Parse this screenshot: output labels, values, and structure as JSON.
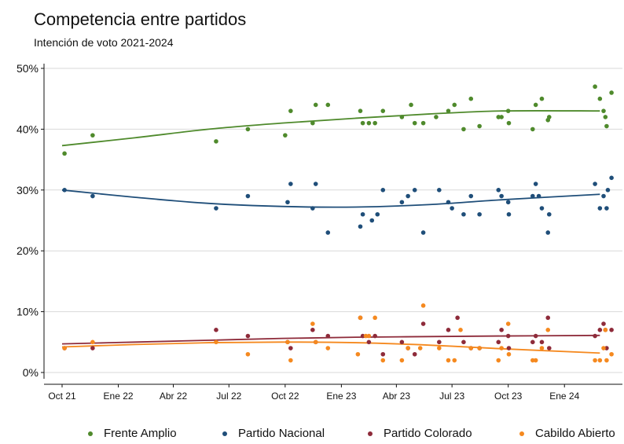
{
  "title": "Competencia entre partidos",
  "subtitle": "Intención de voto 2021-2024",
  "chart_data": {
    "type": "scatter",
    "title": "Competencia entre partidos",
    "subtitle": "Intención de voto 2021-2024",
    "xlabel": "",
    "ylabel": "",
    "x_range": [
      "2021-10-01",
      "2024-04-01"
    ],
    "x_ticks": [
      {
        "date": "2021-10-01",
        "label": "Oct 21"
      },
      {
        "date": "2022-01-01",
        "label": "Ene 22"
      },
      {
        "date": "2022-04-01",
        "label": "Abr 22"
      },
      {
        "date": "2022-07-01",
        "label": "Jul 22"
      },
      {
        "date": "2022-10-01",
        "label": "Oct 22"
      },
      {
        "date": "2023-01-01",
        "label": "Ene 23"
      },
      {
        "date": "2023-04-01",
        "label": "Abr 23"
      },
      {
        "date": "2023-07-01",
        "label": "Jul 23"
      },
      {
        "date": "2023-10-01",
        "label": "Oct 23"
      },
      {
        "date": "2024-01-01",
        "label": "Ene 24"
      }
    ],
    "ylim": [
      0,
      50
    ],
    "y_ticks": [
      {
        "value": 0,
        "label": "0%"
      },
      {
        "value": 10,
        "label": "10%"
      },
      {
        "value": 20,
        "label": "20%"
      },
      {
        "value": 30,
        "label": "30%"
      },
      {
        "value": 40,
        "label": "40%"
      },
      {
        "value": 50,
        "label": "50%"
      }
    ],
    "grid": "horizontal",
    "legend_position": "bottom",
    "series": [
      {
        "name": "Frente Amplio",
        "color": "#4f8a2c",
        "points": [
          [
            "2021-10-05",
            36
          ],
          [
            "2021-11-20",
            39
          ],
          [
            "2022-06-10",
            38
          ],
          [
            "2022-08-01",
            40
          ],
          [
            "2022-10-01",
            39
          ],
          [
            "2022-10-10",
            43
          ],
          [
            "2022-11-15",
            41
          ],
          [
            "2022-11-20",
            44
          ],
          [
            "2022-12-10",
            44
          ],
          [
            "2023-02-01",
            43
          ],
          [
            "2023-02-05",
            41
          ],
          [
            "2023-02-15",
            41
          ],
          [
            "2023-02-25",
            41
          ],
          [
            "2023-03-10",
            43
          ],
          [
            "2023-04-10",
            42
          ],
          [
            "2023-04-25",
            44
          ],
          [
            "2023-05-01",
            41
          ],
          [
            "2023-05-15",
            41
          ],
          [
            "2023-06-05",
            42
          ],
          [
            "2023-06-25",
            43
          ],
          [
            "2023-07-05",
            44
          ],
          [
            "2023-07-20",
            40
          ],
          [
            "2023-08-01",
            45
          ],
          [
            "2023-08-15",
            40.5
          ],
          [
            "2023-09-15",
            42
          ],
          [
            "2023-09-20",
            42
          ],
          [
            "2023-10-01",
            43
          ],
          [
            "2023-10-02",
            41
          ],
          [
            "2023-11-10",
            40
          ],
          [
            "2023-11-15",
            44
          ],
          [
            "2023-11-25",
            45
          ],
          [
            "2023-12-05",
            41.5
          ],
          [
            "2023-12-07",
            42
          ],
          [
            "2024-02-20",
            47
          ],
          [
            "2024-02-28",
            45
          ],
          [
            "2024-03-05",
            43
          ],
          [
            "2024-03-08",
            42
          ],
          [
            "2024-03-10",
            40.5
          ],
          [
            "2024-03-18",
            46
          ]
        ],
        "trend": [
          [
            0,
            37.3
          ],
          [
            120,
            38.6
          ],
          [
            240,
            40.0
          ],
          [
            360,
            41.0
          ],
          [
            480,
            41.8
          ],
          [
            600,
            42.5
          ],
          [
            720,
            43.0
          ],
          [
            880,
            43.0
          ]
        ]
      },
      {
        "name": "Partido Nacional",
        "color": "#1f4e79",
        "points": [
          [
            "2021-10-05",
            30
          ],
          [
            "2021-11-20",
            29
          ],
          [
            "2022-06-10",
            27
          ],
          [
            "2022-08-01",
            29
          ],
          [
            "2022-10-05",
            28
          ],
          [
            "2022-10-10",
            31
          ],
          [
            "2022-11-15",
            27
          ],
          [
            "2022-11-20",
            31
          ],
          [
            "2022-12-10",
            23
          ],
          [
            "2023-02-01",
            24
          ],
          [
            "2023-02-05",
            26
          ],
          [
            "2023-02-20",
            25
          ],
          [
            "2023-03-01",
            26
          ],
          [
            "2023-03-10",
            30
          ],
          [
            "2023-04-10",
            28
          ],
          [
            "2023-04-20",
            29
          ],
          [
            "2023-05-01",
            30
          ],
          [
            "2023-05-15",
            23
          ],
          [
            "2023-06-10",
            30
          ],
          [
            "2023-06-25",
            28
          ],
          [
            "2023-07-01",
            27
          ],
          [
            "2023-07-20",
            26
          ],
          [
            "2023-08-01",
            29
          ],
          [
            "2023-08-15",
            26
          ],
          [
            "2023-09-15",
            30
          ],
          [
            "2023-09-20",
            29
          ],
          [
            "2023-10-01",
            28
          ],
          [
            "2023-10-02",
            26
          ],
          [
            "2023-11-10",
            29
          ],
          [
            "2023-11-15",
            31
          ],
          [
            "2023-11-20",
            29
          ],
          [
            "2023-11-25",
            27
          ],
          [
            "2023-12-05",
            23
          ],
          [
            "2023-12-07",
            26
          ],
          [
            "2024-02-20",
            31
          ],
          [
            "2024-02-28",
            27
          ],
          [
            "2024-03-05",
            29
          ],
          [
            "2024-03-10",
            27
          ],
          [
            "2024-03-12",
            30
          ],
          [
            "2024-03-18",
            32
          ]
        ],
        "trend": [
          [
            0,
            30.0
          ],
          [
            120,
            28.8
          ],
          [
            240,
            27.8
          ],
          [
            360,
            27.3
          ],
          [
            480,
            27.2
          ],
          [
            600,
            27.6
          ],
          [
            720,
            28.4
          ],
          [
            880,
            29.3
          ]
        ]
      },
      {
        "name": "Partido Colorado",
        "color": "#8e2b3a",
        "points": [
          [
            "2021-10-05",
            4
          ],
          [
            "2021-11-20",
            4
          ],
          [
            "2022-06-10",
            7
          ],
          [
            "2022-08-01",
            6
          ],
          [
            "2022-10-05",
            5
          ],
          [
            "2022-10-10",
            4
          ],
          [
            "2022-11-15",
            7
          ],
          [
            "2022-11-20",
            5
          ],
          [
            "2022-12-10",
            6
          ],
          [
            "2023-02-01",
            9
          ],
          [
            "2023-02-05",
            6
          ],
          [
            "2023-02-15",
            5
          ],
          [
            "2023-02-25",
            6
          ],
          [
            "2023-03-10",
            3
          ],
          [
            "2023-04-10",
            5
          ],
          [
            "2023-04-20",
            4
          ],
          [
            "2023-05-01",
            3
          ],
          [
            "2023-05-15",
            8
          ],
          [
            "2023-06-10",
            5
          ],
          [
            "2023-06-25",
            7
          ],
          [
            "2023-07-10",
            9
          ],
          [
            "2023-07-20",
            5
          ],
          [
            "2023-08-01",
            4
          ],
          [
            "2023-08-15",
            4
          ],
          [
            "2023-09-15",
            5
          ],
          [
            "2023-09-20",
            7
          ],
          [
            "2023-10-01",
            6
          ],
          [
            "2023-10-02",
            4
          ],
          [
            "2023-11-10",
            5
          ],
          [
            "2023-11-15",
            6
          ],
          [
            "2023-11-25",
            5
          ],
          [
            "2023-12-05",
            9
          ],
          [
            "2023-12-07",
            4
          ],
          [
            "2024-02-20",
            6
          ],
          [
            "2024-02-28",
            7
          ],
          [
            "2024-03-05",
            8
          ],
          [
            "2024-03-08",
            7
          ],
          [
            "2024-03-10",
            4
          ],
          [
            "2024-03-18",
            7
          ]
        ],
        "trend": [
          [
            0,
            4.7
          ],
          [
            120,
            5.0
          ],
          [
            240,
            5.3
          ],
          [
            360,
            5.6
          ],
          [
            480,
            5.8
          ],
          [
            600,
            5.9
          ],
          [
            720,
            6.0
          ],
          [
            880,
            6.1
          ]
        ]
      },
      {
        "name": "Cabildo Abierto",
        "color": "#f5891f",
        "points": [
          [
            "2021-10-05",
            4
          ],
          [
            "2021-11-20",
            5
          ],
          [
            "2022-06-10",
            5
          ],
          [
            "2022-08-01",
            3
          ],
          [
            "2022-10-05",
            5
          ],
          [
            "2022-10-10",
            2
          ],
          [
            "2022-11-15",
            8
          ],
          [
            "2022-11-20",
            5
          ],
          [
            "2022-12-10",
            4
          ],
          [
            "2023-01-28",
            3
          ],
          [
            "2023-02-01",
            9
          ],
          [
            "2023-02-10",
            6
          ],
          [
            "2023-02-15",
            6
          ],
          [
            "2023-02-25",
            9
          ],
          [
            "2023-03-10",
            2
          ],
          [
            "2023-04-10",
            2
          ],
          [
            "2023-04-20",
            4
          ],
          [
            "2023-05-10",
            4
          ],
          [
            "2023-05-15",
            11
          ],
          [
            "2023-06-10",
            4
          ],
          [
            "2023-06-25",
            2
          ],
          [
            "2023-07-05",
            2
          ],
          [
            "2023-07-15",
            7
          ],
          [
            "2023-08-01",
            4
          ],
          [
            "2023-08-15",
            4
          ],
          [
            "2023-09-15",
            2
          ],
          [
            "2023-09-20",
            4
          ],
          [
            "2023-10-01",
            8
          ],
          [
            "2023-10-02",
            3
          ],
          [
            "2023-11-10",
            2
          ],
          [
            "2023-11-15",
            2
          ],
          [
            "2023-11-25",
            4
          ],
          [
            "2023-12-05",
            7
          ],
          [
            "2024-02-20",
            2
          ],
          [
            "2024-02-28",
            2
          ],
          [
            "2024-03-05",
            4
          ],
          [
            "2024-03-08",
            7
          ],
          [
            "2024-03-10",
            2
          ],
          [
            "2024-03-18",
            3
          ]
        ],
        "trend": [
          [
            0,
            4.2
          ],
          [
            120,
            4.6
          ],
          [
            240,
            4.9
          ],
          [
            360,
            5.0
          ],
          [
            480,
            4.9
          ],
          [
            600,
            4.5
          ],
          [
            720,
            3.9
          ],
          [
            880,
            3.2
          ]
        ]
      }
    ]
  }
}
